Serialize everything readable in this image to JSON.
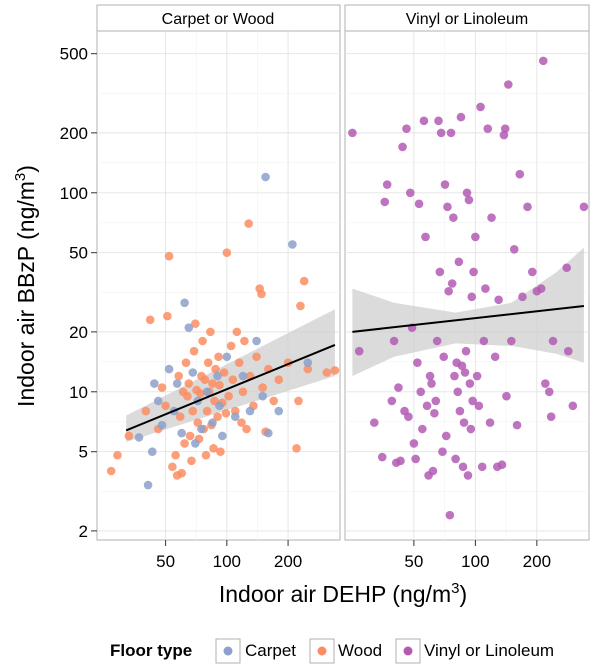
{
  "chart_data": {
    "type": "scatter",
    "facets": [
      "Carpet or Wood",
      "Vinyl or Linoleum"
    ],
    "xlabel_prefix": "Indoor air DEHP (ng/m",
    "xlabel_sup": "3",
    "xlabel_suffix": ")",
    "ylabel_prefix": "Indoor air BBzP  (ng/m",
    "ylabel_sup": "3",
    "ylabel_suffix": ")",
    "x_scale": "log10",
    "y_scale": "log10",
    "xlim": [
      23,
      360
    ],
    "ylim": [
      1.8,
      650
    ],
    "x_ticks": [
      50,
      100,
      200
    ],
    "x_tick_labels": [
      "50",
      "100",
      "200"
    ],
    "y_ticks": [
      2,
      5,
      10,
      20,
      50,
      100,
      200,
      500
    ],
    "y_tick_labels": [
      "2",
      "5",
      "10",
      "20",
      "50",
      "100",
      "200",
      "500"
    ],
    "grid": true,
    "legend_title": "Floor type",
    "legend_position": "bottom",
    "legend": [
      {
        "label": "Carpet",
        "color": "#8da0cb"
      },
      {
        "label": "Wood",
        "color": "#fc8d62"
      },
      {
        "label": "Vinyl or Linoleum",
        "color": "#b35ab3"
      }
    ],
    "series": [
      {
        "name": "Carpet",
        "facet": 0,
        "color": "#8da0cb",
        "points": [
          [
            37,
            5.9
          ],
          [
            41,
            3.4
          ],
          [
            43,
            5
          ],
          [
            44,
            11
          ],
          [
            46,
            9
          ],
          [
            48,
            6.8
          ],
          [
            52,
            13
          ],
          [
            55,
            8
          ],
          [
            57,
            11
          ],
          [
            60,
            6.2
          ],
          [
            62,
            28
          ],
          [
            65,
            21
          ],
          [
            68,
            12.5
          ],
          [
            70,
            5.5
          ],
          [
            72,
            9
          ],
          [
            75,
            6.5
          ],
          [
            80,
            10
          ],
          [
            85,
            7
          ],
          [
            90,
            12
          ],
          [
            92,
            8.5
          ],
          [
            95,
            6
          ],
          [
            100,
            15
          ],
          [
            110,
            7.5
          ],
          [
            120,
            12
          ],
          [
            130,
            8
          ],
          [
            140,
            18
          ],
          [
            150,
            9.5
          ],
          [
            155,
            120
          ],
          [
            160,
            6.2
          ],
          [
            180,
            8
          ],
          [
            210,
            55
          ],
          [
            250,
            14
          ]
        ]
      },
      {
        "name": "Wood",
        "facet": 0,
        "color": "#fc8d62",
        "points": [
          [
            27,
            4
          ],
          [
            29,
            4.8
          ],
          [
            33,
            6
          ],
          [
            40,
            8
          ],
          [
            42,
            23
          ],
          [
            46,
            6.5
          ],
          [
            48,
            10.5
          ],
          [
            50,
            8.5
          ],
          [
            51,
            24
          ],
          [
            52,
            48
          ],
          [
            54,
            4.2
          ],
          [
            56,
            4.8
          ],
          [
            57,
            3.8
          ],
          [
            58,
            12
          ],
          [
            59,
            7.5
          ],
          [
            60,
            3.9
          ],
          [
            61,
            10
          ],
          [
            62,
            5.5
          ],
          [
            63,
            14
          ],
          [
            64,
            9.5
          ],
          [
            65,
            11
          ],
          [
            66,
            6
          ],
          [
            67,
            4.5
          ],
          [
            68,
            8
          ],
          [
            69,
            16
          ],
          [
            70,
            22
          ],
          [
            71,
            10.2
          ],
          [
            72,
            7
          ],
          [
            73,
            5.8
          ],
          [
            74,
            9.8
          ],
          [
            75,
            12
          ],
          [
            76,
            18
          ],
          [
            77,
            6.5
          ],
          [
            78,
            11.5
          ],
          [
            79,
            4.8
          ],
          [
            80,
            8
          ],
          [
            81,
            14
          ],
          [
            82,
            10
          ],
          [
            83,
            20
          ],
          [
            84,
            6.8
          ],
          [
            85,
            11
          ],
          [
            86,
            5.2
          ],
          [
            87,
            9
          ],
          [
            88,
            13
          ],
          [
            90,
            7.5
          ],
          [
            91,
            15
          ],
          [
            92,
            10.8
          ],
          [
            93,
            5
          ],
          [
            95,
            8.8
          ],
          [
            97,
            12.5
          ],
          [
            99,
            7.8
          ],
          [
            100,
            50
          ],
          [
            102,
            9.5
          ],
          [
            105,
            17
          ],
          [
            107,
            11.5
          ],
          [
            110,
            8
          ],
          [
            112,
            20
          ],
          [
            115,
            14
          ],
          [
            118,
            7
          ],
          [
            120,
            10
          ],
          [
            122,
            18
          ],
          [
            125,
            6.5
          ],
          [
            128,
            70
          ],
          [
            130,
            12
          ],
          [
            135,
            8.5
          ],
          [
            140,
            15
          ],
          [
            145,
            33
          ],
          [
            148,
            31
          ],
          [
            150,
            10.5
          ],
          [
            155,
            6.3
          ],
          [
            160,
            13
          ],
          [
            170,
            9
          ],
          [
            180,
            11.5
          ],
          [
            200,
            14
          ],
          [
            220,
            5.2
          ],
          [
            225,
            9
          ],
          [
            230,
            27
          ],
          [
            240,
            36
          ],
          [
            250,
            13
          ],
          [
            310,
            12.5
          ],
          [
            340,
            12.8
          ]
        ]
      },
      {
        "name": "Vinyl or Linoleum",
        "facet": 1,
        "color": "#b35ab3",
        "points": [
          [
            25,
            200
          ],
          [
            27,
            16
          ],
          [
            32,
            7
          ],
          [
            35,
            4.7
          ],
          [
            36,
            90
          ],
          [
            37,
            110
          ],
          [
            39,
            9
          ],
          [
            40,
            18
          ],
          [
            41,
            4.4
          ],
          [
            42,
            10.5
          ],
          [
            43,
            4.5
          ],
          [
            44,
            170
          ],
          [
            45,
            8
          ],
          [
            46,
            210
          ],
          [
            47,
            7.5
          ],
          [
            48,
            100
          ],
          [
            49,
            21
          ],
          [
            50,
            5.5
          ],
          [
            51,
            4.6
          ],
          [
            52,
            14
          ],
          [
            53,
            88
          ],
          [
            54,
            10
          ],
          [
            55,
            6.5
          ],
          [
            56,
            230
          ],
          [
            57,
            60
          ],
          [
            58,
            8.5
          ],
          [
            59,
            3.8
          ],
          [
            60,
            12
          ],
          [
            61,
            11
          ],
          [
            62,
            4
          ],
          [
            63,
            7.8
          ],
          [
            64,
            9
          ],
          [
            65,
            18
          ],
          [
            66,
            230
          ],
          [
            67,
            40
          ],
          [
            68,
            200
          ],
          [
            69,
            5
          ],
          [
            70,
            15
          ],
          [
            71,
            110
          ],
          [
            72,
            6
          ],
          [
            73,
            85
          ],
          [
            74,
            32
          ],
          [
            75,
            2.4
          ],
          [
            76,
            200
          ],
          [
            77,
            35
          ],
          [
            78,
            75
          ],
          [
            79,
            12
          ],
          [
            80,
            4.6
          ],
          [
            81,
            14
          ],
          [
            82,
            10
          ],
          [
            83,
            45
          ],
          [
            84,
            8
          ],
          [
            85,
            240
          ],
          [
            86,
            13.5
          ],
          [
            87,
            4.2
          ],
          [
            88,
            7
          ],
          [
            89,
            12.5
          ],
          [
            90,
            16
          ],
          [
            91,
            100
          ],
          [
            92,
            3.8
          ],
          [
            93,
            92
          ],
          [
            94,
            11
          ],
          [
            95,
            6.5
          ],
          [
            96,
            30
          ],
          [
            97,
            9
          ],
          [
            98,
            40
          ],
          [
            100,
            60
          ],
          [
            102,
            12
          ],
          [
            104,
            8.5
          ],
          [
            106,
            270
          ],
          [
            108,
            4.2
          ],
          [
            110,
            18
          ],
          [
            112,
            33
          ],
          [
            115,
            210
          ],
          [
            118,
            7
          ],
          [
            120,
            75
          ],
          [
            125,
            15
          ],
          [
            128,
            4.2
          ],
          [
            130,
            29
          ],
          [
            135,
            4.3
          ],
          [
            138,
            195
          ],
          [
            140,
            210
          ],
          [
            142,
            9.5
          ],
          [
            145,
            350
          ],
          [
            150,
            18
          ],
          [
            155,
            52
          ],
          [
            160,
            6.8
          ],
          [
            165,
            124
          ],
          [
            170,
            30
          ],
          [
            180,
            85
          ],
          [
            190,
            40
          ],
          [
            200,
            32
          ],
          [
            210,
            33
          ],
          [
            215,
            460
          ],
          [
            220,
            11
          ],
          [
            230,
            10
          ],
          [
            235,
            7.5
          ],
          [
            240,
            18
          ],
          [
            280,
            42
          ],
          [
            285,
            16
          ],
          [
            300,
            8.5
          ],
          [
            340,
            85
          ]
        ]
      }
    ],
    "fits": [
      {
        "facet": 0,
        "x": [
          32,
          340
        ],
        "y": [
          6.4,
          17.2
        ],
        "ci_low": [
          5.6,
          12
        ],
        "ci_high": [
          7.6,
          26
        ]
      },
      {
        "facet": 1,
        "x": [
          25,
          340
        ],
        "y": [
          20,
          27
        ],
        "ci_low_x": [
          25,
          40,
          80,
          150,
          250,
          340
        ],
        "ci_low": [
          12,
          15,
          17.5,
          17,
          15.5,
          14
        ],
        "ci_high_x": [
          25,
          40,
          80,
          150,
          250,
          340
        ],
        "ci_high": [
          33,
          28,
          25,
          28,
          40,
          53
        ]
      }
    ]
  }
}
